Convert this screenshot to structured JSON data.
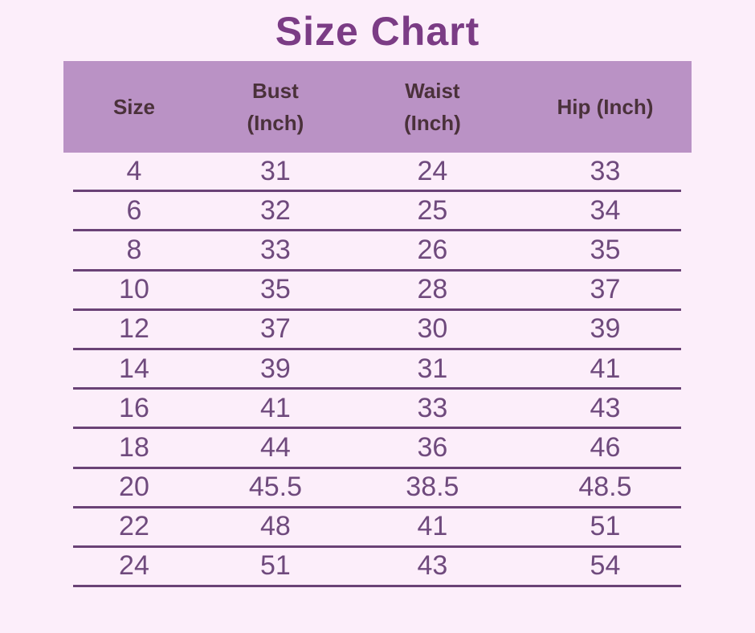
{
  "page": {
    "title": "Size Chart"
  },
  "colors": {
    "page_bg": "#fceefa",
    "title_text": "#7b3c85",
    "header_bg": "#ba92c5",
    "header_text": "#4a313a",
    "number_text": "#6f4a7d",
    "divider": "#6a4276"
  },
  "table": {
    "headers": [
      "Size",
      "Bust (Inch)",
      "Waist (Inch)",
      "Hip (Inch)"
    ],
    "rows": [
      [
        "4",
        "31",
        "24",
        "33"
      ],
      [
        "6",
        "32",
        "25",
        "34"
      ],
      [
        "8",
        "33",
        "26",
        "35"
      ],
      [
        "10",
        "35",
        "28",
        "37"
      ],
      [
        "12",
        "37",
        "30",
        "39"
      ],
      [
        "14",
        "39",
        "31",
        "41"
      ],
      [
        "16",
        "41",
        "33",
        "43"
      ],
      [
        "18",
        "44",
        "36",
        "46"
      ],
      [
        "20",
        "45.5",
        "38.5",
        "48.5"
      ],
      [
        "22",
        "48",
        "41",
        "51"
      ],
      [
        "24",
        "51",
        "43",
        "54"
      ]
    ]
  },
  "chart_data": {
    "type": "table",
    "title": "Size Chart",
    "columns": [
      "Size",
      "Bust (Inch)",
      "Waist (Inch)",
      "Hip (Inch)"
    ],
    "rows": [
      [
        4,
        31,
        24,
        33
      ],
      [
        6,
        32,
        25,
        34
      ],
      [
        8,
        33,
        26,
        35
      ],
      [
        10,
        35,
        28,
        37
      ],
      [
        12,
        37,
        30,
        39
      ],
      [
        14,
        39,
        31,
        41
      ],
      [
        16,
        41,
        33,
        43
      ],
      [
        18,
        44,
        36,
        46
      ],
      [
        20,
        45.5,
        38.5,
        48.5
      ],
      [
        22,
        48,
        41,
        51
      ],
      [
        24,
        51,
        43,
        54
      ]
    ]
  }
}
